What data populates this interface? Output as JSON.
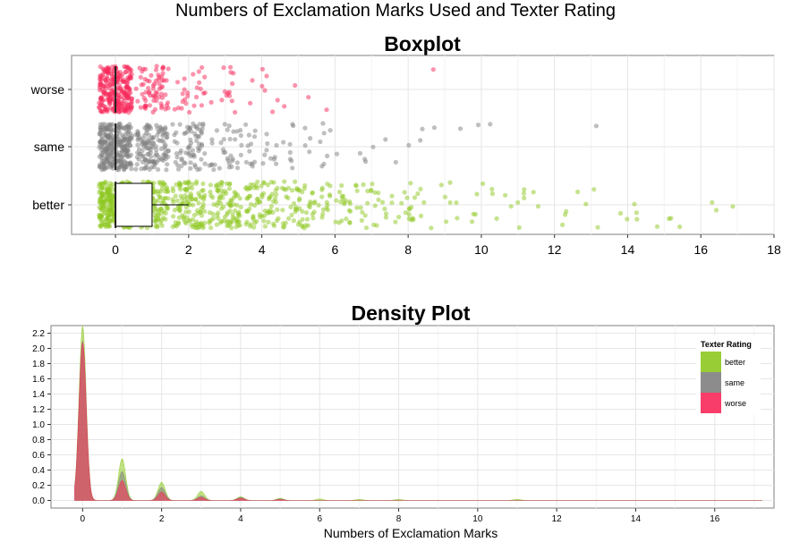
{
  "title": "Numbers of Exclamation Marks Used and Texter Rating",
  "chart_data": [
    {
      "type": "scatter",
      "title": "Boxplot",
      "xlabel": "",
      "ylabel": "",
      "categories": [
        "better",
        "same",
        "worse"
      ],
      "xlim": [
        -1.2,
        18
      ],
      "x_ticks": [
        0,
        2,
        4,
        6,
        8,
        10,
        12,
        14,
        16,
        18
      ],
      "grid": true,
      "boxes": [
        {
          "name": "better",
          "min": 0,
          "q1": 0,
          "median": 0,
          "q3": 1,
          "max": 2
        },
        {
          "name": "same",
          "min": 0,
          "q1": 0,
          "median": 0,
          "q3": 0,
          "max": 0
        },
        {
          "name": "worse",
          "min": 0,
          "q1": 0,
          "median": 0,
          "q3": 0,
          "max": 0
        }
      ],
      "series": [
        {
          "name": "better",
          "color": "#8DC820",
          "jitter_counts": [
            {
              "x": 0,
              "n": 300
            },
            {
              "x": 1,
              "n": 150
            },
            {
              "x": 2,
              "n": 110
            },
            {
              "x": 3,
              "n": 90
            },
            {
              "x": 4,
              "n": 75
            },
            {
              "x": 5,
              "n": 55
            },
            {
              "x": 6,
              "n": 35
            },
            {
              "x": 7,
              "n": 25
            },
            {
              "x": 8,
              "n": 22
            },
            {
              "x": 9,
              "n": 8
            },
            {
              "x": 10,
              "n": 8
            },
            {
              "x": 11,
              "n": 8
            },
            {
              "x": 12,
              "n": 4
            },
            {
              "x": 13,
              "n": 4
            },
            {
              "x": 14,
              "n": 5
            },
            {
              "x": 15,
              "n": 4
            },
            {
              "x": 16,
              "n": 2
            },
            {
              "x": 17,
              "n": 1
            }
          ]
        },
        {
          "name": "same",
          "color": "#7F7F7F",
          "jitter_counts": [
            {
              "x": 0,
              "n": 280
            },
            {
              "x": 1,
              "n": 130
            },
            {
              "x": 2,
              "n": 70
            },
            {
              "x": 3,
              "n": 35
            },
            {
              "x": 4,
              "n": 22
            },
            {
              "x": 5,
              "n": 12
            },
            {
              "x": 6,
              "n": 8
            },
            {
              "x": 7,
              "n": 5
            },
            {
              "x": 8,
              "n": 4
            },
            {
              "x": 9,
              "n": 2
            },
            {
              "x": 10,
              "n": 2
            },
            {
              "x": 13,
              "n": 1
            }
          ]
        },
        {
          "name": "worse",
          "color": "#F8285A",
          "jitter_counts": [
            {
              "x": 0,
              "n": 260
            },
            {
              "x": 1,
              "n": 70
            },
            {
              "x": 2,
              "n": 25
            },
            {
              "x": 3,
              "n": 14
            },
            {
              "x": 4,
              "n": 8
            },
            {
              "x": 5,
              "n": 3
            },
            {
              "x": 6,
              "n": 1
            },
            {
              "x": 9,
              "n": 1
            }
          ]
        }
      ]
    },
    {
      "type": "area",
      "title": "Density Plot",
      "xlabel": "Numbers of Exclamation Marks",
      "ylabel": "",
      "xlim": [
        -0.8,
        17.5
      ],
      "ylim": [
        -0.1,
        2.3
      ],
      "x_ticks": [
        0,
        2,
        4,
        6,
        8,
        10,
        12,
        14,
        16
      ],
      "y_ticks": [
        0.0,
        0.2,
        0.4,
        0.6,
        0.8,
        1.0,
        1.2,
        1.4,
        1.6,
        1.8,
        2.0,
        2.2
      ],
      "grid": true,
      "legend": {
        "title": "Texter Rating",
        "position": "top-right"
      },
      "series": [
        {
          "name": "better",
          "color": "#8DC820",
          "peaks": [
            {
              "x": 0,
              "y": 2.3
            },
            {
              "x": 1,
              "y": 0.55
            },
            {
              "x": 2,
              "y": 0.24
            },
            {
              "x": 3,
              "y": 0.12
            },
            {
              "x": 4,
              "y": 0.05
            },
            {
              "x": 5,
              "y": 0.03
            },
            {
              "x": 6,
              "y": 0.02
            },
            {
              "x": 7,
              "y": 0.015
            },
            {
              "x": 8,
              "y": 0.015
            },
            {
              "x": 11,
              "y": 0.015
            }
          ]
        },
        {
          "name": "same",
          "color": "#7F7F7F",
          "peaks": [
            {
              "x": 0,
              "y": 2.1
            },
            {
              "x": 1,
              "y": 0.38
            },
            {
              "x": 2,
              "y": 0.17
            },
            {
              "x": 3,
              "y": 0.06
            },
            {
              "x": 4,
              "y": 0.04
            },
            {
              "x": 5,
              "y": 0.02
            }
          ]
        },
        {
          "name": "worse",
          "color": "#F8285A",
          "peaks": [
            {
              "x": 0,
              "y": 2.08
            },
            {
              "x": 1,
              "y": 0.26
            },
            {
              "x": 2,
              "y": 0.11
            },
            {
              "x": 3,
              "y": 0.04
            },
            {
              "x": 4,
              "y": 0.03
            },
            {
              "x": 5,
              "y": 0.01
            }
          ]
        }
      ]
    }
  ]
}
